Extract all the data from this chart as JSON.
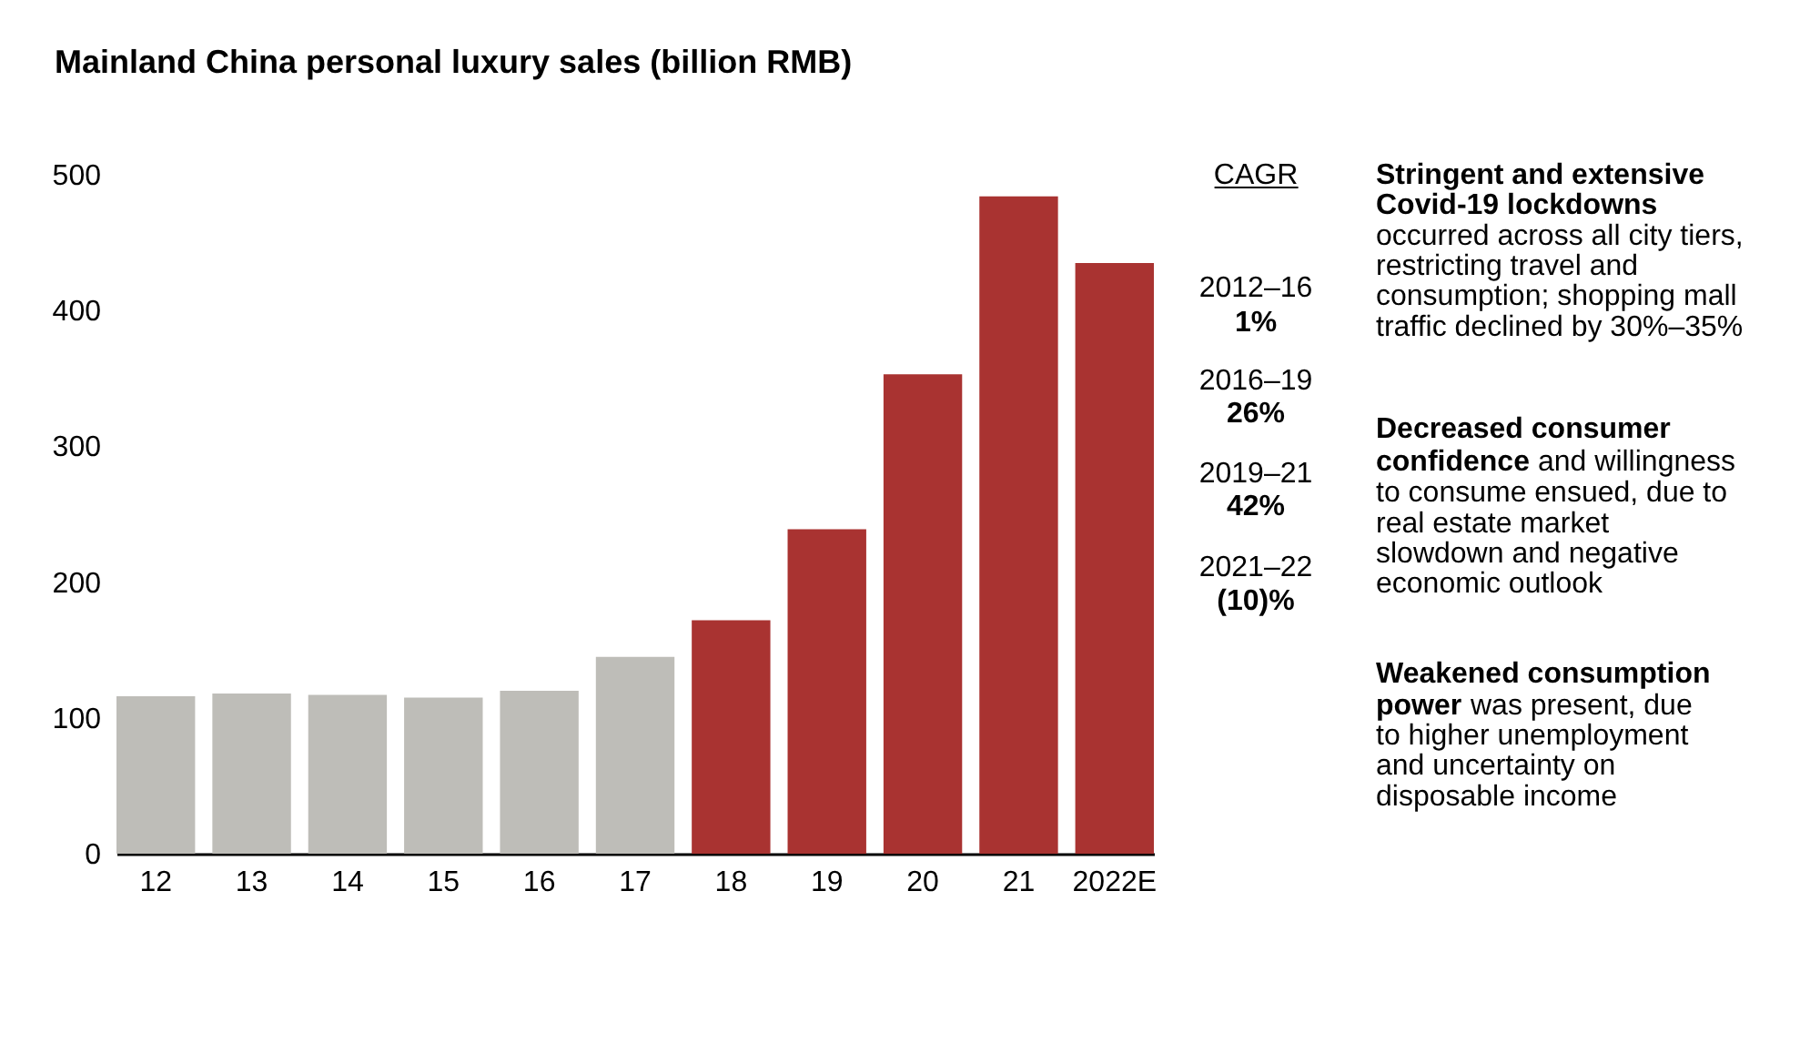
{
  "chart_data": {
    "type": "bar",
    "title": "Mainland China personal luxury sales (billion RMB)",
    "categories": [
      "12",
      "13",
      "14",
      "15",
      "16",
      "17",
      "18",
      "19",
      "20",
      "21",
      "2022E"
    ],
    "values": [
      116,
      118,
      117,
      115,
      120,
      145,
      172,
      239,
      353,
      484,
      435
    ],
    "colors": [
      "#bebdb8",
      "#bebdb8",
      "#bebdb8",
      "#bebdb8",
      "#bebdb8",
      "#bebdb8",
      "#a93331",
      "#a93331",
      "#a93331",
      "#a93331",
      "#a93331"
    ],
    "ylim": [
      0,
      500
    ],
    "yticks": [
      0,
      100,
      200,
      300,
      400,
      500
    ],
    "annotations": [
      "CAGR",
      "2012–16",
      "1%",
      "2016–19",
      "26%",
      "2019–21",
      "42%",
      "2021–22",
      "(10)%",
      "Stringent and extensive",
      "Covid-19 lockdowns",
      "occurred across all city tiers,",
      "restricting travel and",
      "consumption; shopping mall",
      "traffic declined by 30%–35%",
      "Decreased consumer",
      "confidence",
      "and willingness",
      "to consume ensued, due to",
      "real estate market",
      "slowdown and negative",
      "economic outlook",
      "Weakened consumption",
      "power",
      "was present, due",
      "to higher unemployment",
      "and uncertainty on",
      "disposable income"
    ]
  }
}
